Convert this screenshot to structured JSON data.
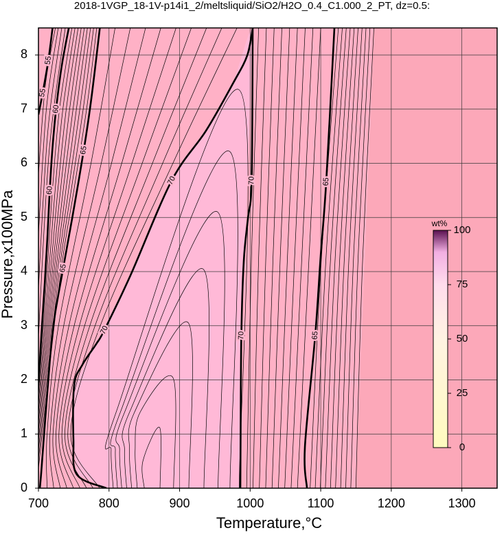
{
  "chart_data": {
    "type": "contour",
    "title": "2018-1VGP_18-1V-p14i1_2/meltsliquid/SiO2/H2O_0.4_C1.000_2_PT, dz=0.5:",
    "x_label": "Temperature,°C",
    "y_label": "Pressure,x100MPa",
    "xlim": [
      700,
      1350
    ],
    "xticks": [
      700,
      800,
      900,
      1000,
      1100,
      1200,
      1300
    ],
    "ylim": [
      0,
      8.5
    ],
    "yticks": [
      0,
      1,
      2,
      3,
      4,
      5,
      6,
      7,
      8
    ],
    "grid": true,
    "color": "#000000",
    "colorbar": {
      "label": "wt%",
      "lim": [
        0,
        100
      ],
      "ticks": [
        0,
        25,
        50,
        75,
        100
      ]
    },
    "contours": [
      {
        "level": 55,
        "T": [
          700,
          706,
          714,
          720
        ],
        "P": [
          6.9,
          7.3,
          7.9,
          8.5
        ]
      },
      {
        "level": 60,
        "T": [
          700,
          704,
          709,
          713,
          716,
          720,
          725,
          733,
          743
        ],
        "P": [
          1.9,
          2.8,
          3.8,
          4.7,
          5.5,
          6.3,
          7.0,
          7.8,
          8.5
        ]
      },
      {
        "level": 65,
        "T": [
          702,
          704,
          708,
          714,
          721,
          735,
          748,
          764.2,
          775,
          787
        ],
        "P": [
          0,
          0.3,
          1.0,
          2.0,
          3.0,
          4.06,
          5.0,
          6.24,
          7.2,
          8.5
        ]
      },
      {
        "level": 70,
        "T": [
          796.3,
          754.5,
          749.6,
          750.6,
          762.3,
          781.7,
          793.4,
          830.4,
          888.8,
          937.4,
          976.3,
          995.8,
          1003.6
        ],
        "P": [
          0,
          0.25,
          0.89,
          1.9,
          2.28,
          2.66,
          2.92,
          3.93,
          5.68,
          6.6,
          7.49,
          7.99,
          8.5
        ]
      },
      {
        "level": 70,
        "T": [
          986.1,
          986.5,
          987.5,
          991,
          997,
          1002.1,
          1003.6
        ],
        "P": [
          0,
          1.0,
          2.82,
          4.2,
          5.0,
          5.68,
          8.5
        ]
      },
      {
        "level": 65,
        "T": [
          1080.5,
          1077.6,
          1092.2,
          1100,
          1107.8,
          1119.4
        ],
        "P": [
          0,
          0.76,
          2.82,
          4.3,
          5.66,
          8.5
        ]
      },
      {
        "T": [
          1085,
          1101,
          1125
        ],
        "P": [
          0,
          4.25,
          8.5
        ]
      },
      {
        "T": [
          1092.2,
          1107.5,
          1130.6
        ],
        "P": [
          0,
          4.25,
          8.5
        ]
      },
      {
        "T": [
          1099.4,
          1114,
          1136.2
        ],
        "P": [
          0,
          4.25,
          8.5
        ]
      },
      {
        "T": [
          1106.6,
          1120.5,
          1141.8
        ],
        "P": [
          0,
          4.25,
          8.5
        ]
      },
      {
        "T": [
          1113.8,
          1127,
          1147.4
        ],
        "P": [
          0,
          4.25,
          8.5
        ]
      },
      {
        "T": [
          1121,
          1133.5,
          1153
        ],
        "P": [
          0,
          4.25,
          8.5
        ]
      },
      {
        "T": [
          1128.2,
          1140,
          1158.6
        ],
        "P": [
          0,
          4.25,
          8.5
        ]
      },
      {
        "T": [
          1135.4,
          1146.5,
          1164.2
        ],
        "P": [
          0,
          4.25,
          8.5
        ]
      },
      {
        "T": [
          1142.6,
          1153,
          1169.8
        ],
        "P": [
          0,
          4.25,
          8.5
        ]
      },
      {
        "T": [
          1149.8,
          1159.5,
          1175.4
        ],
        "P": [
          0,
          4.25,
          8.5
        ]
      },
      {
        "T": [
          995,
          1001.8,
          1012
        ],
        "P": [
          0,
          4.25,
          8.5
        ]
      },
      {
        "T": [
          1004,
          1012,
          1023
        ],
        "P": [
          0,
          4.25,
          8.5
        ]
      },
      {
        "T": [
          1013,
          1022.2,
          1034
        ],
        "P": [
          0,
          4.25,
          8.5
        ]
      },
      {
        "T": [
          1022,
          1032.4,
          1045
        ],
        "P": [
          0,
          4.25,
          8.5
        ]
      },
      {
        "T": [
          1031,
          1042.6,
          1056
        ],
        "P": [
          0,
          4.25,
          8.5
        ]
      },
      {
        "T": [
          1040,
          1052.8,
          1067
        ],
        "P": [
          0,
          4.25,
          8.5
        ]
      },
      {
        "T": [
          1049,
          1063,
          1078
        ],
        "P": [
          0,
          4.25,
          8.5
        ]
      },
      {
        "T": [
          1058,
          1073.2,
          1089
        ],
        "P": [
          0,
          4.25,
          8.5
        ]
      },
      {
        "T": [
          1067,
          1083.4,
          1100
        ],
        "P": [
          0,
          4.25,
          8.5
        ]
      },
      {
        "T": [
          850,
          848,
          871.8,
          872.3
        ],
        "P": [
          0,
          0.5,
          1.12,
          0
        ]
      },
      {
        "T": [
          840,
          837,
          844,
          891,
          891.5
        ],
        "P": [
          0,
          0.7,
          1.4,
          2.03,
          0
        ]
      },
      {
        "T": [
          832,
          829,
          836,
          912.6,
          913.1
        ],
        "P": [
          0,
          0.7,
          1.4,
          3.05,
          0
        ]
      },
      {
        "T": [
          825,
          822,
          829,
          934,
          934.5
        ],
        "P": [
          0,
          0.7,
          1.4,
          4.04,
          0
        ]
      },
      {
        "T": [
          818,
          815,
          822,
          954,
          954.5
        ],
        "P": [
          0,
          0.7,
          1.4,
          5.1,
          0
        ]
      },
      {
        "T": [
          812,
          809,
          816,
          970.9,
          971.4
        ],
        "P": [
          0,
          0.7,
          1.4,
          6.22,
          0
        ]
      },
      {
        "T": [
          806,
          803,
          810,
          984,
          984.5
        ],
        "P": [
          0,
          0.7,
          1.4,
          7.36,
          0
        ]
      },
      {
        "T": [
          712.3,
          712.2,
          728.4,
          774.5,
          808.6
        ],
        "P": [
          0,
          1,
          3,
          6,
          8.5
        ]
      },
      {
        "T": [
          721.6,
          716.4,
          735.8,
          789,
          830.2
        ],
        "P": [
          0,
          1,
          3,
          6,
          8.5
        ]
      },
      {
        "T": [
          730.9,
          720.6,
          743.2,
          803.5,
          851.8
        ],
        "P": [
          0,
          1,
          3,
          6,
          8.5
        ]
      },
      {
        "T": [
          740.2,
          724.8,
          750.6,
          818,
          873.4
        ],
        "P": [
          0,
          1,
          3,
          6,
          8.5
        ]
      },
      {
        "T": [
          749.5,
          729,
          758,
          832.5,
          895
        ],
        "P": [
          0,
          1,
          3,
          6,
          8.5
        ]
      },
      {
        "T": [
          758.8,
          733.2,
          765.4,
          847,
          916.6
        ],
        "P": [
          0,
          1,
          3,
          6,
          8.5
        ]
      },
      {
        "T": [
          768.1,
          737.4,
          772.8,
          861.5,
          938.2
        ],
        "P": [
          0,
          1,
          3,
          6,
          8.5
        ]
      },
      {
        "T": [
          777.4,
          741.6,
          780.2,
          876,
          959.8
        ],
        "P": [
          0,
          1,
          3,
          6,
          8.5
        ]
      },
      {
        "T": [
          786.7,
          745.8,
          787.6,
          890.5,
          981.4
        ],
        "P": [
          0,
          1,
          3,
          6,
          8.5
        ]
      },
      {
        "T": [
          700,
          711.3,
          719.8,
          729.8,
          747.4
        ],
        "P": [
          1.73,
          3.8,
          5.5,
          7,
          8.5
        ]
      },
      {
        "T": [
          700,
          713.6,
          723.6,
          734.6,
          751.8
        ],
        "P": [
          1.56,
          3.8,
          5.5,
          7,
          8.5
        ]
      },
      {
        "T": [
          700,
          715.9,
          727.4,
          739.4,
          756.2
        ],
        "P": [
          1.39,
          3.8,
          5.5,
          7,
          8.5
        ]
      },
      {
        "T": [
          700,
          718.2,
          731.2,
          744.2,
          760.6
        ],
        "P": [
          1.22,
          3.8,
          5.5,
          7,
          8.5
        ]
      },
      {
        "T": [
          700,
          720.5,
          735,
          749,
          765
        ],
        "P": [
          1.05,
          3.8,
          5.5,
          7,
          8.5
        ]
      },
      {
        "T": [
          700,
          722.8,
          738.8,
          753.8,
          769.4
        ],
        "P": [
          0.88,
          3.8,
          5.5,
          7,
          8.5
        ]
      },
      {
        "T": [
          700,
          725.1,
          742.6,
          758.6,
          773.8
        ],
        "P": [
          0.71,
          3.8,
          5.5,
          7,
          8.5
        ]
      },
      {
        "T": [
          700,
          727.4,
          746.4,
          763.4,
          778.2
        ],
        "P": [
          0.54,
          3.8,
          5.5,
          7,
          8.5
        ]
      },
      {
        "T": [
          700,
          729.7,
          750.2,
          768.2,
          782.6
        ],
        "P": [
          0.37,
          3.8,
          5.5,
          7,
          8.5
        ]
      },
      {
        "T": [
          700,
          715.2,
          738
        ],
        "P": [
          2.8,
          6.22,
          8.5
        ]
      },
      {
        "T": [
          700,
          713.2,
          733
        ],
        "P": [
          3.7,
          6.58,
          8.5
        ]
      },
      {
        "T": [
          700,
          711.2,
          728
        ],
        "P": [
          4.7,
          7.0,
          8.5
        ]
      },
      {
        "T": [
          700,
          709.6,
          724
        ],
        "P": [
          5.8,
          7.42,
          8.5
        ]
      }
    ]
  }
}
